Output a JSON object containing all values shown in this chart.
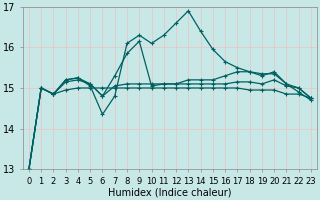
{
  "xlabel": "Humidex (Indice chaleur)",
  "xlim": [
    -0.5,
    23.5
  ],
  "ylim": [
    13,
    17
  ],
  "yticks": [
    13,
    14,
    15,
    16,
    17
  ],
  "xticks": [
    0,
    1,
    2,
    3,
    4,
    5,
    6,
    7,
    8,
    9,
    10,
    11,
    12,
    13,
    14,
    15,
    16,
    17,
    18,
    19,
    20,
    21,
    22,
    23
  ],
  "bg_color": "#c8e8e8",
  "grid_color": "#e8c8c8",
  "line_color": "#006060",
  "series": [
    [
      13.0,
      15.0,
      14.85,
      14.95,
      15.0,
      15.0,
      15.0,
      15.0,
      15.0,
      15.0,
      15.0,
      15.0,
      15.0,
      15.0,
      15.0,
      15.0,
      15.0,
      15.0,
      14.95,
      14.95,
      14.95,
      14.85,
      14.85,
      14.75
    ],
    [
      13.0,
      15.0,
      14.85,
      15.15,
      15.2,
      15.1,
      14.8,
      15.05,
      15.1,
      15.1,
      15.1,
      15.1,
      15.1,
      15.1,
      15.1,
      15.1,
      15.1,
      15.15,
      15.15,
      15.1,
      15.2,
      15.05,
      15.0,
      14.75
    ],
    [
      13.0,
      15.0,
      14.85,
      15.2,
      15.25,
      15.1,
      14.8,
      15.3,
      15.85,
      16.15,
      15.05,
      15.1,
      15.1,
      15.2,
      15.2,
      15.2,
      15.3,
      15.4,
      15.4,
      15.35,
      15.35,
      15.1,
      15.0,
      14.75
    ],
    [
      13.0,
      15.0,
      14.85,
      15.2,
      15.25,
      15.05,
      14.35,
      14.8,
      16.1,
      16.3,
      16.1,
      16.3,
      16.6,
      16.9,
      16.4,
      15.95,
      15.65,
      15.5,
      15.4,
      15.3,
      15.4,
      15.1,
      14.9,
      14.7
    ]
  ],
  "xlabel_fontsize": 7,
  "tick_fontsize": 6,
  "ytick_fontsize": 7,
  "linewidth": 0.9,
  "markersize": 3,
  "markeredgewidth": 0.8
}
